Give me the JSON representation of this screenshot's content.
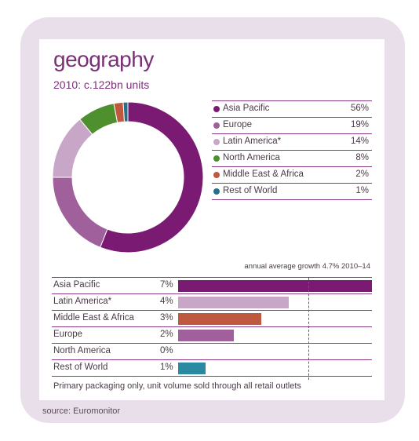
{
  "title": "geography",
  "subtitle": "2010: c.122bn units",
  "growth_caption": "annual average growth 4.7% 2010–14",
  "note": "Primary packaging only, unit volume sold through all retail outlets",
  "source": "source: Euromonitor",
  "chart_data": [
    {
      "type": "pie",
      "style": "donut",
      "categories": [
        "Asia Pacific",
        "Europe",
        "Latin America*",
        "North America",
        "Middle East & Africa",
        "Rest of World"
      ],
      "values": [
        56,
        19,
        14,
        8,
        2,
        1
      ],
      "value_labels": [
        "56%",
        "19%",
        "14%",
        "8%",
        "2%",
        "1%"
      ],
      "colors": [
        "#7b1a72",
        "#a0609b",
        "#c8a6c7",
        "#4e8f2e",
        "#c0583f",
        "#2a6f88"
      ],
      "legend": "right"
    },
    {
      "type": "bar",
      "orientation": "horizontal",
      "categories": [
        "Asia Pacific",
        "Latin America*",
        "Middle East & Africa",
        "Europe",
        "North America",
        "Rest of World"
      ],
      "values": [
        7,
        4,
        3,
        2,
        0,
        1
      ],
      "value_labels": [
        "7%",
        "4%",
        "3%",
        "2%",
        "0%",
        "1%"
      ],
      "colors": [
        "#7b1a72",
        "#c8a6c7",
        "#c0583f",
        "#a0609b",
        "#4e8f2e",
        "#2a8ba0"
      ],
      "xlim": [
        0,
        7
      ],
      "reference_line": 4.7
    }
  ]
}
